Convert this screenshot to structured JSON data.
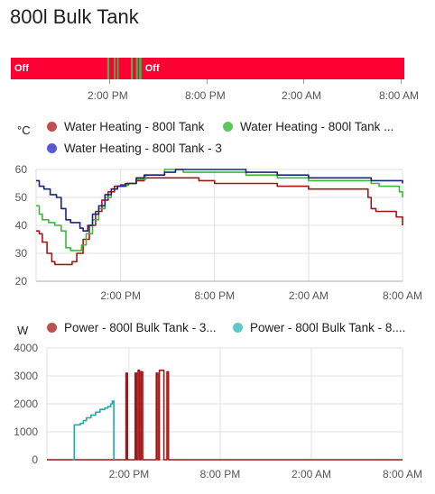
{
  "card": {
    "title": "800l Bulk Tank"
  },
  "timeline": {
    "segments": [
      {
        "state": "Off",
        "start": 0.0,
        "end": 0.245,
        "color": "#ff0033",
        "label": "Off"
      },
      {
        "state": "On",
        "start": 0.245,
        "end": 0.25,
        "color": "#4caf50",
        "label": ""
      },
      {
        "state": "Off",
        "start": 0.25,
        "end": 0.262,
        "color": "#ff0033",
        "label": ""
      },
      {
        "state": "On",
        "start": 0.262,
        "end": 0.266,
        "color": "#4caf50",
        "label": ""
      },
      {
        "state": "Off",
        "start": 0.266,
        "end": 0.27,
        "color": "#ff0033",
        "label": ""
      },
      {
        "state": "On",
        "start": 0.27,
        "end": 0.274,
        "color": "#4caf50",
        "label": ""
      },
      {
        "state": "Off",
        "start": 0.274,
        "end": 0.305,
        "color": "#ff0033",
        "label": ""
      },
      {
        "state": "On",
        "start": 0.305,
        "end": 0.31,
        "color": "#4caf50",
        "label": ""
      },
      {
        "state": "Off",
        "start": 0.31,
        "end": 0.318,
        "color": "#ff0033",
        "label": ""
      },
      {
        "state": "On",
        "start": 0.318,
        "end": 0.323,
        "color": "#4caf50",
        "label": ""
      },
      {
        "state": "Off",
        "start": 0.323,
        "end": 0.326,
        "color": "#ff0033",
        "label": ""
      },
      {
        "state": "On",
        "start": 0.326,
        "end": 0.332,
        "color": "#4caf50",
        "label": ""
      },
      {
        "state": "Off",
        "start": 0.332,
        "end": 1.0,
        "color": "#ff0033",
        "label": "Off"
      }
    ],
    "ticks": [
      "2:00 PM",
      "8:00 PM",
      "2:00 AM",
      "8:00 AM"
    ]
  },
  "chart_data": [
    {
      "type": "line",
      "title": "",
      "unit": "°C",
      "x_ticks": [
        "2:00 PM",
        "8:00 PM",
        "2:00 AM",
        "8:00 AM"
      ],
      "x_range_hours": [
        8.6,
        32.0
      ],
      "ylim": [
        20,
        60
      ],
      "y_ticks": [
        20,
        30,
        40,
        50,
        60
      ],
      "grid": true,
      "legend": [
        {
          "name": "Water Heating - 800l Tank",
          "color": "#c0504d"
        },
        {
          "name": "Water Heating - 800l Tank ...",
          "color": "#5cc85c"
        },
        {
          "name": "Water Heating - 800l Tank - 3",
          "color": "#5a5ad0"
        }
      ],
      "series": [
        {
          "name": "Water Heating - 800l Tank",
          "color": "#a01818",
          "points": [
            [
              8.6,
              38
            ],
            [
              8.8,
              37
            ],
            [
              9.0,
              34
            ],
            [
              9.3,
              30
            ],
            [
              9.6,
              27
            ],
            [
              9.8,
              26
            ],
            [
              10.2,
              26
            ],
            [
              10.6,
              26
            ],
            [
              10.9,
              27
            ],
            [
              11.2,
              30
            ],
            [
              11.6,
              35
            ],
            [
              12.0,
              40
            ],
            [
              12.4,
              45
            ],
            [
              12.8,
              49
            ],
            [
              13.2,
              52
            ],
            [
              13.6,
              54
            ],
            [
              14.0,
              54.5
            ],
            [
              14.5,
              55
            ],
            [
              15.0,
              56
            ],
            [
              15.5,
              57
            ],
            [
              16.5,
              57
            ],
            [
              17.0,
              57
            ],
            [
              19.0,
              56
            ],
            [
              20.0,
              55
            ],
            [
              22.0,
              55
            ],
            [
              24.0,
              54
            ],
            [
              26.0,
              53
            ],
            [
              28.0,
              53
            ],
            [
              29.5,
              53
            ],
            [
              29.8,
              50
            ],
            [
              30.0,
              46
            ],
            [
              30.3,
              45
            ],
            [
              31.3,
              45
            ],
            [
              31.6,
              43
            ],
            [
              32.0,
              40
            ]
          ]
        },
        {
          "name": "Water Heating - 800l Tank ...",
          "color": "#3cb83c",
          "points": [
            [
              8.6,
              47
            ],
            [
              8.8,
              44
            ],
            [
              9.0,
              42
            ],
            [
              9.4,
              41
            ],
            [
              9.8,
              40
            ],
            [
              10.2,
              38
            ],
            [
              10.5,
              32
            ],
            [
              10.8,
              31
            ],
            [
              11.2,
              31
            ],
            [
              11.5,
              33
            ],
            [
              11.8,
              37
            ],
            [
              12.2,
              42
            ],
            [
              12.6,
              46
            ],
            [
              13.0,
              50
            ],
            [
              13.4,
              53
            ],
            [
              13.8,
              54
            ],
            [
              14.4,
              55
            ],
            [
              15.0,
              56.5
            ],
            [
              15.6,
              58
            ],
            [
              16.0,
              58
            ],
            [
              16.8,
              60
            ],
            [
              18.0,
              59
            ],
            [
              20.0,
              59
            ],
            [
              22.0,
              58
            ],
            [
              24.0,
              57
            ],
            [
              26.0,
              56
            ],
            [
              28.0,
              56
            ],
            [
              29.5,
              56
            ],
            [
              30.0,
              55
            ],
            [
              30.5,
              54
            ],
            [
              31.5,
              54
            ],
            [
              31.8,
              52
            ],
            [
              32.0,
              50
            ]
          ]
        },
        {
          "name": "Water Heating - 800l Tank - 3",
          "color": "#1a237e",
          "points": [
            [
              8.6,
              56
            ],
            [
              8.8,
              54
            ],
            [
              9.1,
              53
            ],
            [
              9.5,
              51
            ],
            [
              9.9,
              50
            ],
            [
              10.2,
              46
            ],
            [
              10.5,
              42
            ],
            [
              10.8,
              41
            ],
            [
              11.2,
              41
            ],
            [
              11.4,
              39
            ],
            [
              11.6,
              38
            ],
            [
              11.9,
              40
            ],
            [
              12.2,
              44
            ],
            [
              12.6,
              47
            ],
            [
              13.0,
              51
            ],
            [
              13.4,
              53
            ],
            [
              13.8,
              54
            ],
            [
              14.3,
              55
            ],
            [
              15.0,
              57
            ],
            [
              15.5,
              58
            ],
            [
              16.0,
              58
            ],
            [
              16.8,
              59
            ],
            [
              17.5,
              60
            ],
            [
              19.0,
              60
            ],
            [
              21.0,
              60
            ],
            [
              22.0,
              59
            ],
            [
              24.0,
              58
            ],
            [
              26.0,
              57
            ],
            [
              28.0,
              57
            ],
            [
              29.5,
              57
            ],
            [
              30.0,
              56
            ],
            [
              31.0,
              56
            ],
            [
              32.0,
              55
            ]
          ]
        }
      ]
    },
    {
      "type": "line",
      "title": "",
      "unit": "W",
      "x_ticks": [
        "2:00 PM",
        "8:00 PM",
        "2:00 AM",
        "8:00 AM"
      ],
      "x_range_hours": [
        8.6,
        32.0
      ],
      "ylim": [
        0,
        4000
      ],
      "y_ticks": [
        0,
        1000,
        2000,
        3000,
        4000
      ],
      "grid": true,
      "legend": [
        {
          "name": "Power - 800l Bulk Tank - 3...",
          "color": "#c0504d"
        },
        {
          "name": "Power - 800l Bulk Tank - 8....",
          "color": "#5cc8c8"
        }
      ],
      "series": [
        {
          "name": "Power - 800l Bulk Tank - 3...",
          "color": "#a01818",
          "points": [
            [
              8.6,
              0
            ],
            [
              13.8,
              0
            ],
            [
              13.8,
              3100
            ],
            [
              13.9,
              3100
            ],
            [
              13.9,
              0
            ],
            [
              14.4,
              0
            ],
            [
              14.4,
              3100
            ],
            [
              14.5,
              3100
            ],
            [
              14.5,
              0
            ],
            [
              14.6,
              0
            ],
            [
              14.6,
              3200
            ],
            [
              14.7,
              3200
            ],
            [
              14.7,
              0
            ],
            [
              14.8,
              0
            ],
            [
              14.8,
              3150
            ],
            [
              14.9,
              3150
            ],
            [
              14.9,
              0
            ],
            [
              15.8,
              0
            ],
            [
              15.8,
              3100
            ],
            [
              15.9,
              3100
            ],
            [
              15.9,
              0
            ],
            [
              16.0,
              0
            ],
            [
              16.0,
              3200
            ],
            [
              16.3,
              3200
            ],
            [
              16.3,
              0
            ],
            [
              16.5,
              0
            ],
            [
              16.5,
              3150
            ],
            [
              16.6,
              3150
            ],
            [
              16.6,
              0
            ],
            [
              32.0,
              0
            ]
          ]
        },
        {
          "name": "Power - 800l Bulk Tank - 8....",
          "color": "#26a6a6",
          "points": [
            [
              10.3,
              0
            ],
            [
              10.4,
              0
            ],
            [
              10.4,
              1250
            ],
            [
              10.8,
              1250
            ],
            [
              10.8,
              1300
            ],
            [
              11.0,
              1300
            ],
            [
              11.0,
              1400
            ],
            [
              11.2,
              1500
            ],
            [
              11.5,
              1600
            ],
            [
              11.8,
              1700
            ],
            [
              12.1,
              1800
            ],
            [
              12.4,
              1850
            ],
            [
              12.6,
              1900
            ],
            [
              12.8,
              2000
            ],
            [
              12.9,
              2100
            ],
            [
              13.0,
              2000
            ],
            [
              13.0,
              0
            ]
          ]
        }
      ]
    }
  ]
}
